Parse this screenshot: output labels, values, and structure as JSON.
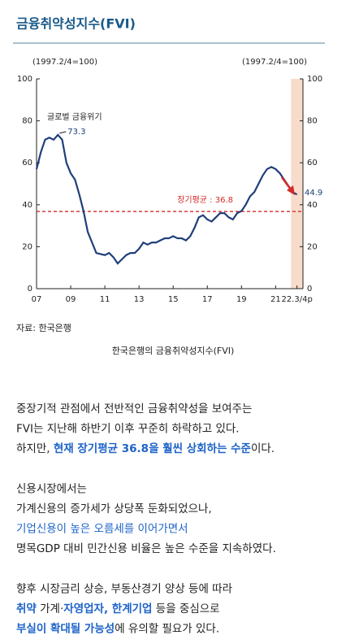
{
  "header": {
    "title": "금융취약성지수(FVI)"
  },
  "chart_data": {
    "type": "line",
    "y_label": "(1997.2/4=100)",
    "y2_label": "(1997.2/4=100)",
    "annotation": "글로벌 금융위기",
    "source": "자료: 한국은행",
    "caption": "한국은행의 금융취약성지수(FVI)",
    "x": [
      2007,
      2007.25,
      2007.5,
      2007.75,
      2008,
      2008.25,
      2008.5,
      2008.75,
      2009,
      2009.25,
      2009.5,
      2009.75,
      2010,
      2010.25,
      2010.5,
      2010.75,
      2011,
      2011.25,
      2011.5,
      2011.75,
      2012,
      2012.25,
      2012.5,
      2012.75,
      2013,
      2013.25,
      2013.5,
      2013.75,
      2014,
      2014.25,
      2014.5,
      2014.75,
      2015,
      2015.25,
      2015.5,
      2015.75,
      2016,
      2016.25,
      2016.5,
      2016.75,
      2017,
      2017.25,
      2017.5,
      2017.75,
      2018,
      2018.25,
      2018.5,
      2018.75,
      2019,
      2019.25,
      2019.5,
      2019.75,
      2020,
      2020.25,
      2020.5,
      2020.75,
      2021,
      2021.25,
      2021.5,
      2021.75,
      2022,
      2022.25
    ],
    "series": [
      {
        "name": "FVI",
        "color": "#1f3f7a",
        "values": [
          57,
          65,
          71,
          72,
          71,
          73.3,
          71,
          60,
          55,
          52,
          45,
          37,
          27,
          22,
          17,
          16.5,
          16,
          17,
          15,
          12,
          14,
          16,
          17,
          17,
          19,
          22,
          21,
          22,
          22,
          23,
          24,
          24,
          25,
          24,
          24,
          23,
          25,
          29,
          34,
          35,
          33,
          32,
          34,
          36,
          36,
          34,
          33,
          36,
          37,
          40,
          44,
          46,
          50,
          54,
          57,
          58,
          57,
          55,
          52,
          49,
          46,
          44.9
        ]
      }
    ],
    "xlim": [
      2007,
      2022.6
    ],
    "xticks": [
      {
        "value": 2007,
        "label": "07"
      },
      {
        "value": 2009,
        "label": "09"
      },
      {
        "value": 2011,
        "label": "11"
      },
      {
        "value": 2013,
        "label": "13"
      },
      {
        "value": 2015,
        "label": "15"
      },
      {
        "value": 2017,
        "label": "17"
      },
      {
        "value": 2019,
        "label": "19"
      },
      {
        "value": 2021,
        "label": "21"
      },
      {
        "value": 2022.25,
        "label": "22.3/4p"
      }
    ],
    "ylim": [
      0,
      100
    ],
    "yticks": [
      0,
      20,
      40,
      60,
      80,
      100
    ],
    "y2lim": [
      0,
      100
    ],
    "y2ticks": [
      0,
      20,
      40,
      60,
      80,
      100
    ],
    "reference": {
      "label": "장기평균 : 36.8",
      "value": 36.8,
      "color": "#d42a2a"
    },
    "highlight_x": [
      2021.9,
      2022.6
    ],
    "highlight_color": "#f8dccb"
  },
  "body": {
    "paragraphs": [
      [
        [
          {
            "text": "중장기적 관점에서 전반적인 금융취약성을 보여주는",
            "style": "plain"
          }
        ],
        [
          {
            "text": "FVI는 지난해 하반기 이후 꾸준히 하락하고 있다.",
            "style": "plain"
          }
        ],
        [
          {
            "text": "하지만, ",
            "style": "plain"
          },
          {
            "text": "현재 장기평균 36.8을 훨씬 상회하는 수준",
            "style": "strong"
          },
          {
            "text": "이다.",
            "style": "plain"
          }
        ]
      ],
      [
        [
          {
            "text": "신용시장에서는",
            "style": "plain"
          }
        ],
        [
          {
            "text": "가계신용의 증가세가 상당폭 둔화되었으나,",
            "style": "plain"
          }
        ],
        [
          {
            "text": "기업신용이 높은 오름세를 이어가면서",
            "style": "blue"
          }
        ],
        [
          {
            "text": "명목GDP 대비 민간신용 비율은 높은 수준을 지속하였다.",
            "style": "plain"
          }
        ]
      ],
      [
        [
          {
            "text": "향후 시장금리 상승, 부동산경기 양상 등에 따라",
            "style": "plain"
          }
        ],
        [
          {
            "text": "취약",
            "style": "strong"
          },
          {
            "text": " 가계·",
            "style": "plain"
          },
          {
            "text": "자영업자, 한계기업",
            "style": "strong"
          },
          {
            "text": " 등을 중심으로",
            "style": "plain"
          }
        ],
        [
          {
            "text": "부실이 확대될 가능성",
            "style": "strong"
          },
          {
            "text": "에 유의할 필요가 있다.",
            "style": "plain"
          }
        ]
      ]
    ]
  }
}
